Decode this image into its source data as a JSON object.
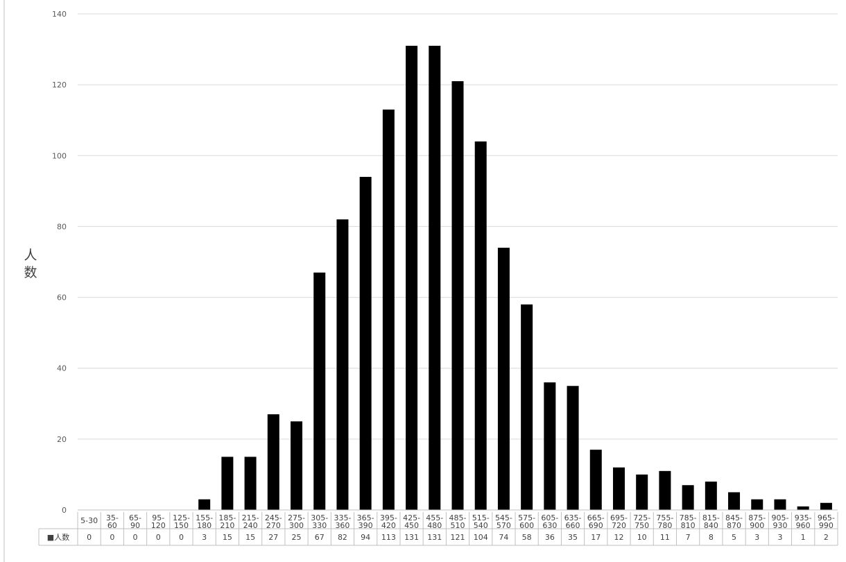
{
  "chart_data": {
    "type": "bar",
    "title": "",
    "ylabel": "人数",
    "xlabel": "",
    "ylim": [
      0,
      140
    ],
    "yticks": [
      0,
      20,
      40,
      60,
      80,
      100,
      120,
      140
    ],
    "grid": true,
    "legend": "data-table-left",
    "bar_color": "#000000",
    "categories": [
      [
        "5-30"
      ],
      [
        "35-",
        "60"
      ],
      [
        "65-",
        "90"
      ],
      [
        "95-",
        "120"
      ],
      [
        "125-",
        "150"
      ],
      [
        "155-",
        "180"
      ],
      [
        "185-",
        "210"
      ],
      [
        "215-",
        "240"
      ],
      [
        "245-",
        "270"
      ],
      [
        "275-",
        "300"
      ],
      [
        "305-",
        "330"
      ],
      [
        "335-",
        "360"
      ],
      [
        "365-",
        "390"
      ],
      [
        "395-",
        "420"
      ],
      [
        "425-",
        "450"
      ],
      [
        "455-",
        "480"
      ],
      [
        "485-",
        "510"
      ],
      [
        "515-",
        "540"
      ],
      [
        "545-",
        "570"
      ],
      [
        "575-",
        "600"
      ],
      [
        "605-",
        "630"
      ],
      [
        "635-",
        "660"
      ],
      [
        "665-",
        "690"
      ],
      [
        "695-",
        "720"
      ],
      [
        "725-",
        "750"
      ],
      [
        "755-",
        "780"
      ],
      [
        "785-",
        "810"
      ],
      [
        "815-",
        "840"
      ],
      [
        "845-",
        "870"
      ],
      [
        "875-",
        "900"
      ],
      [
        "905-",
        "930"
      ],
      [
        "935-",
        "960"
      ],
      [
        "965-",
        "990"
      ]
    ],
    "series": [
      {
        "name": "■人数",
        "values": [
          0,
          0,
          0,
          0,
          0,
          3,
          15,
          15,
          27,
          25,
          67,
          82,
          94,
          113,
          131,
          131,
          121,
          104,
          74,
          58,
          36,
          35,
          17,
          12,
          10,
          11,
          7,
          8,
          5,
          3,
          3,
          1,
          2
        ]
      }
    ]
  }
}
